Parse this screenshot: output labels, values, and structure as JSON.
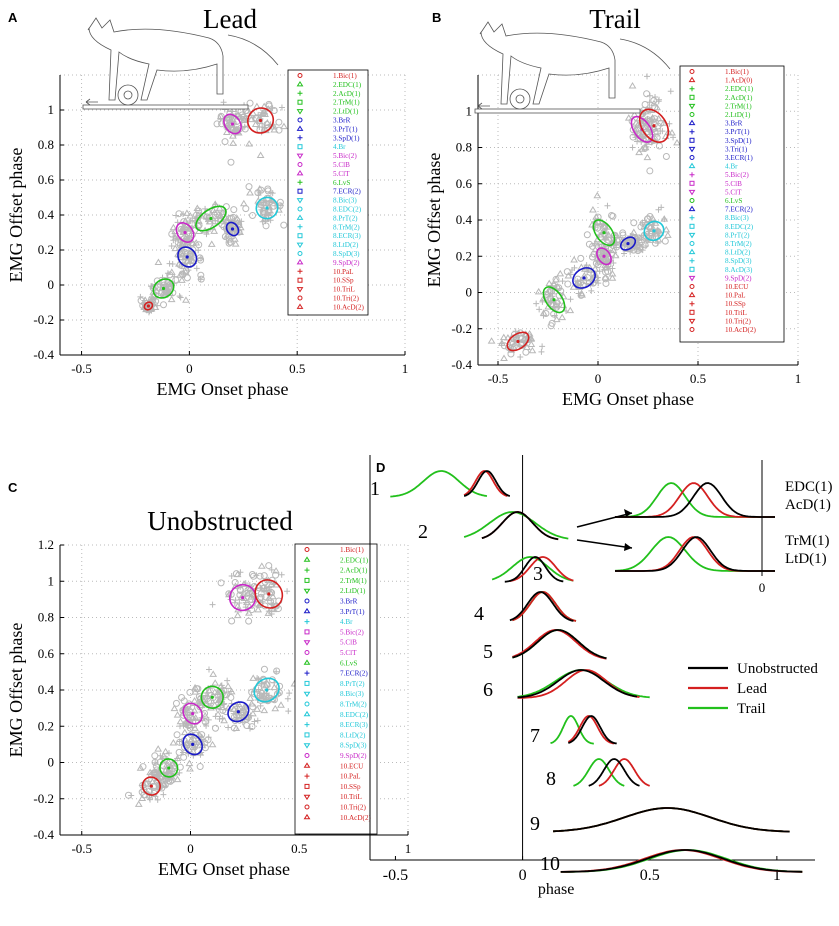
{
  "colors": {
    "red": "#d42020",
    "green": "#22c01c",
    "blue": "#1a1ac8",
    "cyan": "#22c8d8",
    "magenta": "#c828c8",
    "black": "#000000",
    "grey": "#b8b8b8"
  },
  "chart_data": [
    {
      "panel": "A",
      "type": "scatter",
      "title": "Lead",
      "xlabel": "EMG Onset phase",
      "ylabel": "EMG Offset phase",
      "xlim": [
        -0.6,
        1.0
      ],
      "ylim": [
        -0.4,
        1.2
      ],
      "xticks": [
        "-0.5",
        "0",
        "0.5",
        "1"
      ],
      "yticks": [
        "-0.4",
        "-0.2",
        "0",
        "0.2",
        "0.4",
        "0.6",
        "0.8",
        "1"
      ],
      "series": [
        {
          "name": "1.Bic(1)",
          "color": "red",
          "x": -0.19,
          "y": -0.12,
          "rx": 0.02,
          "ry": 0.02
        },
        {
          "name": "2.EDC(1)",
          "color": "green",
          "x": -0.12,
          "y": -0.02,
          "rx": 0.05,
          "ry": 0.05
        },
        {
          "name": "2.AcD(1)",
          "color": "green",
          "x": 0.1,
          "y": 0.38,
          "rx": 0.08,
          "ry": 0.05
        },
        {
          "name": "4.Br",
          "color": "blue",
          "x": -0.01,
          "y": 0.16,
          "rx": 0.04,
          "ry": 0.06
        },
        {
          "name": "3.SpD(1)",
          "color": "blue",
          "x": 0.2,
          "y": 0.32,
          "rx": 0.025,
          "ry": 0.04
        },
        {
          "name": "5.Bic(2)",
          "color": "magenta",
          "x": -0.02,
          "y": 0.3,
          "rx": 0.035,
          "ry": 0.06
        },
        {
          "name": "8.Bic(3)",
          "color": "cyan",
          "x": 0.36,
          "y": 0.44,
          "rx": 0.05,
          "ry": 0.06
        },
        {
          "name": "9.SpD(2)",
          "color": "magenta",
          "x": 0.2,
          "y": 0.92,
          "rx": 0.035,
          "ry": 0.06
        },
        {
          "name": "10.AcD(2)",
          "color": "red",
          "x": 0.33,
          "y": 0.94,
          "rx": 0.06,
          "ry": 0.07
        }
      ],
      "legend": [
        "1.Bic(1)",
        "2.EDC(1)",
        "2.AcD(1)",
        "2.TrM(1)",
        "2.LtD(1)",
        "3.BrR",
        "3.PrT(1)",
        "3.SpD(1)",
        "4.Br",
        "5.Bic(2)",
        "5.ClB",
        "5.ClT",
        "6.LvS",
        "7.ECR(2)",
        "8.Bic(3)",
        "8.EDC(2)",
        "8.PrT(2)",
        "8.TrM(2)",
        "8.ECR(3)",
        "8.LtD(2)",
        "8.SpD(3)",
        "9.SpD(2)",
        "10.PaL",
        "10.SSp",
        "10.TriL",
        "10.Tri(2)",
        "10.AcD(2)"
      ],
      "legend_colors": [
        "red",
        "green",
        "green",
        "green",
        "green",
        "blue",
        "blue",
        "blue",
        "cyan",
        "magenta",
        "magenta",
        "magenta",
        "green",
        "blue",
        "cyan",
        "cyan",
        "cyan",
        "cyan",
        "cyan",
        "cyan",
        "cyan",
        "magenta",
        "red",
        "red",
        "red",
        "red",
        "red"
      ]
    },
    {
      "panel": "B",
      "type": "scatter",
      "title": "Trail",
      "xlabel": "EMG Onset phase",
      "ylabel": "EMG Offset phase",
      "xlim": [
        -0.6,
        1.0
      ],
      "ylim": [
        -0.4,
        1.2
      ],
      "xticks": [
        "-0.5",
        "0",
        "0.5",
        "1"
      ],
      "yticks": [
        "-0.4",
        "-0.2",
        "0",
        "0.2",
        "0.4",
        "0.6",
        "0.8",
        "1"
      ],
      "series": [
        {
          "name": "1.Bic(1)",
          "color": "red",
          "x": -0.4,
          "y": -0.27,
          "rx": 0.06,
          "ry": 0.04
        },
        {
          "name": "2.EDC(1)",
          "color": "green",
          "x": -0.22,
          "y": -0.04,
          "rx": 0.04,
          "ry": 0.08
        },
        {
          "name": "2.AcD(1)",
          "color": "green",
          "x": 0.03,
          "y": 0.33,
          "rx": 0.04,
          "ry": 0.08
        },
        {
          "name": "4.Br",
          "color": "blue",
          "x": -0.07,
          "y": 0.08,
          "rx": 0.06,
          "ry": 0.05
        },
        {
          "name": "3.BrR",
          "color": "blue",
          "x": 0.15,
          "y": 0.27,
          "rx": 0.04,
          "ry": 0.03
        },
        {
          "name": "5.Bic(2)",
          "color": "magenta",
          "x": 0.03,
          "y": 0.2,
          "rx": 0.03,
          "ry": 0.05
        },
        {
          "name": "8.Bic(3)",
          "color": "cyan",
          "x": 0.28,
          "y": 0.34,
          "rx": 0.05,
          "ry": 0.05
        },
        {
          "name": "9.SpD(2)",
          "color": "magenta",
          "x": 0.22,
          "y": 0.9,
          "rx": 0.04,
          "ry": 0.08
        },
        {
          "name": "10.AcD(2)",
          "color": "red",
          "x": 0.28,
          "y": 0.92,
          "rx": 0.06,
          "ry": 0.1
        }
      ],
      "legend": [
        "1.Bic(1)",
        "1.AcD(0)",
        "2.EDC(1)",
        "2.AcD(1)",
        "2.TrM(1)",
        "2.LtD(1)",
        "3.BrR",
        "3.PrT(1)",
        "3.SpD(1)",
        "3.Tri(1)",
        "3.ECR(1)",
        "4.Br",
        "5.Bic(2)",
        "5.ClB",
        "5.ClT",
        "6.LvS",
        "7.ECR(2)",
        "8.Bic(3)",
        "8.EDC(2)",
        "8.PrT(2)",
        "8.TrM(2)",
        "8.LtD(2)",
        "8.SpD(3)",
        "8.AcD(3)",
        "9.SpD(2)",
        "10.ECU",
        "10.PaL",
        "10.SSp",
        "10.TriL",
        "10.Tri(2)",
        "10.AcD(2)"
      ],
      "legend_colors": [
        "red",
        "red",
        "green",
        "green",
        "green",
        "green",
        "blue",
        "blue",
        "blue",
        "blue",
        "blue",
        "cyan",
        "magenta",
        "magenta",
        "magenta",
        "green",
        "blue",
        "cyan",
        "cyan",
        "cyan",
        "cyan",
        "cyan",
        "cyan",
        "cyan",
        "magenta",
        "red",
        "red",
        "red",
        "red",
        "red",
        "red"
      ]
    },
    {
      "panel": "C",
      "type": "scatter",
      "title": "Unobstructed",
      "xlabel": "EMG Onset phase",
      "ylabel": "EMG Offset phase",
      "xlim": [
        -0.6,
        1.0
      ],
      "ylim": [
        -0.4,
        1.2
      ],
      "xticks": [
        "-0.5",
        "0",
        "0.5",
        "1"
      ],
      "yticks": [
        "-0.4",
        "-0.2",
        "0",
        "0.2",
        "0.4",
        "0.6",
        "0.8",
        "1",
        "1.2"
      ],
      "series": [
        {
          "name": "1.Bic(1)",
          "color": "red",
          "x": -0.18,
          "y": -0.13,
          "rx": 0.04,
          "ry": 0.05
        },
        {
          "name": "2.EDC(1)",
          "color": "green",
          "x": -0.1,
          "y": -0.03,
          "rx": 0.04,
          "ry": 0.05
        },
        {
          "name": "4.Br",
          "color": "blue",
          "x": 0.01,
          "y": 0.1,
          "rx": 0.04,
          "ry": 0.06
        },
        {
          "name": "2.AcD(1)",
          "color": "green",
          "x": 0.1,
          "y": 0.36,
          "rx": 0.05,
          "ry": 0.06
        },
        {
          "name": "5.Bic(2)",
          "color": "magenta",
          "x": 0.01,
          "y": 0.27,
          "rx": 0.04,
          "ry": 0.06
        },
        {
          "name": "7.ECR(2)",
          "color": "blue",
          "x": 0.22,
          "y": 0.28,
          "rx": 0.05,
          "ry": 0.05
        },
        {
          "name": "8.Bic(3)",
          "color": "cyan",
          "x": 0.35,
          "y": 0.4,
          "rx": 0.06,
          "ry": 0.06
        },
        {
          "name": "9.SpD(2)",
          "color": "magenta",
          "x": 0.24,
          "y": 0.91,
          "rx": 0.06,
          "ry": 0.07
        },
        {
          "name": "10.AcD(2)",
          "color": "red",
          "x": 0.36,
          "y": 0.93,
          "rx": 0.06,
          "ry": 0.08
        }
      ],
      "legend": [
        "1.Bic(1)",
        "2.EDC(1)",
        "2.AcD(1)",
        "2.TrM(1)",
        "2.LtD(1)",
        "3.BrR",
        "3.PrT(1)",
        "4.Br",
        "5.Bic(2)",
        "5.ClB",
        "5.ClT",
        "6.LvS",
        "7.ECR(2)",
        "8.PrT(2)",
        "8.Bic(3)",
        "8.TrM(2)",
        "8.EDC(2)",
        "8.ECR(3)",
        "8.LtD(2)",
        "8.SpD(3)",
        "9.SpD(2)",
        "10.ECU",
        "10.PaL",
        "10.SSp",
        "10.TriL",
        "10.Tri(2)",
        "10.AcD(2)"
      ],
      "legend_colors": [
        "red",
        "green",
        "green",
        "green",
        "green",
        "blue",
        "blue",
        "cyan",
        "magenta",
        "magenta",
        "magenta",
        "green",
        "blue",
        "cyan",
        "cyan",
        "cyan",
        "cyan",
        "cyan",
        "cyan",
        "cyan",
        "magenta",
        "red",
        "red",
        "red",
        "red",
        "red",
        "red"
      ]
    },
    {
      "panel": "D",
      "type": "line",
      "xlabel": "phase",
      "xlim": [
        -0.6,
        1.15
      ],
      "xticks": [
        "-0.5",
        "0",
        "0.5",
        "1"
      ],
      "series_names": [
        "Unobstructed",
        "Lead",
        "Trail"
      ],
      "series_colors": [
        "black",
        "red",
        "green"
      ],
      "rows": [
        {
          "label": "1",
          "peaks": [
            {
              "m": -0.14,
              "s": 0.035,
              "lo": -0.23,
              "hi": -0.05
            },
            {
              "m": -0.15,
              "s": 0.035,
              "lo": -0.23,
              "hi": -0.06
            },
            {
              "m": -0.32,
              "s": 0.07,
              "lo": -0.52,
              "hi": -0.14
            }
          ]
        },
        {
          "label": "2",
          "peaks": [
            {
              "m": -0.02,
              "s": 0.06,
              "lo": -0.16,
              "hi": 0.14
            },
            {
              "m": -0.02,
              "s": 0.06,
              "lo": -0.16,
              "hi": 0.14
            },
            {
              "m": -0.04,
              "s": 0.09,
              "lo": -0.23,
              "hi": 0.18
            }
          ]
        },
        {
          "label": "3",
          "peaks": [
            {
              "m": 0.05,
              "s": 0.04,
              "lo": -0.07,
              "hi": 0.16
            },
            {
              "m": 0.08,
              "s": 0.05,
              "lo": -0.05,
              "hi": 0.2
            },
            {
              "m": 0.03,
              "s": 0.07,
              "lo": -0.12,
              "hi": 0.2
            }
          ]
        },
        {
          "label": "4",
          "peaks": [
            {
              "m": 0.07,
              "s": 0.05,
              "lo": -0.05,
              "hi": 0.2
            },
            {
              "m": 0.08,
              "s": 0.05,
              "lo": -0.04,
              "hi": 0.21
            },
            {
              "m": 0.08,
              "s": 0.05,
              "lo": -0.04,
              "hi": 0.21
            }
          ]
        },
        {
          "label": "5",
          "peaks": [
            {
              "m": 0.14,
              "s": 0.08,
              "lo": -0.04,
              "hi": 0.33
            },
            {
              "m": 0.13,
              "s": 0.08,
              "lo": -0.04,
              "hi": 0.33
            },
            {
              "m": 0.14,
              "s": 0.08,
              "lo": -0.04,
              "hi": 0.33
            }
          ]
        },
        {
          "label": "6",
          "peaks": [
            {
              "m": 0.23,
              "s": 0.09,
              "lo": -0.02,
              "hi": 0.45
            },
            {
              "m": 0.25,
              "s": 0.08,
              "lo": -0.02,
              "hi": 0.46
            },
            {
              "m": 0.23,
              "s": 0.1,
              "lo": -0.02,
              "hi": 0.5
            }
          ]
        },
        {
          "label": "7",
          "peaks": [
            {
              "m": 0.27,
              "s": 0.035,
              "lo": 0.18,
              "hi": 0.37
            },
            {
              "m": 0.26,
              "s": 0.035,
              "lo": 0.18,
              "hi": 0.36
            },
            {
              "m": 0.19,
              "s": 0.03,
              "lo": 0.11,
              "hi": 0.28
            }
          ]
        },
        {
          "label": "8",
          "peaks": [
            {
              "m": 0.36,
              "s": 0.04,
              "lo": 0.26,
              "hi": 0.46
            },
            {
              "m": 0.4,
              "s": 0.04,
              "lo": 0.3,
              "hi": 0.5
            },
            {
              "m": 0.3,
              "s": 0.04,
              "lo": 0.2,
              "hi": 0.4
            }
          ]
        },
        {
          "label": "9",
          "peaks": [
            {
              "m": 0.57,
              "s": 0.17,
              "lo": 0.12,
              "hi": 1.05
            },
            {
              "m": 0.57,
              "s": 0.17,
              "lo": 0.12,
              "hi": 1.05
            },
            {
              "m": 0.57,
              "s": 0.17,
              "lo": 0.12,
              "hi": 1.05
            }
          ]
        },
        {
          "label": "10",
          "peaks": [
            {
              "m": 0.64,
              "s": 0.15,
              "lo": 0.15,
              "hi": 1.1
            },
            {
              "m": 0.63,
              "s": 0.15,
              "lo": 0.15,
              "hi": 1.1
            },
            {
              "m": 0.65,
              "s": 0.15,
              "lo": 0.15,
              "hi": 1.1
            }
          ]
        }
      ],
      "insets": [
        {
          "labels": [
            "EDC(1)",
            "AcD(1)"
          ],
          "peaks": [
            {
              "m": 0.78,
              "s": 0.05
            },
            {
              "m": 0.73,
              "s": 0.05
            },
            {
              "m": 0.65,
              "s": 0.05
            }
          ]
        },
        {
          "labels": [
            "TrM(1)",
            "LtD(1)"
          ],
          "peaks": [
            {
              "m": 0.74,
              "s": 0.05
            },
            {
              "m": 0.73,
              "s": 0.05
            },
            {
              "m": 0.64,
              "s": 0.06
            }
          ]
        }
      ],
      "inset_zero_label": "0"
    }
  ],
  "panel_labels": [
    "A",
    "B",
    "C",
    "D"
  ]
}
